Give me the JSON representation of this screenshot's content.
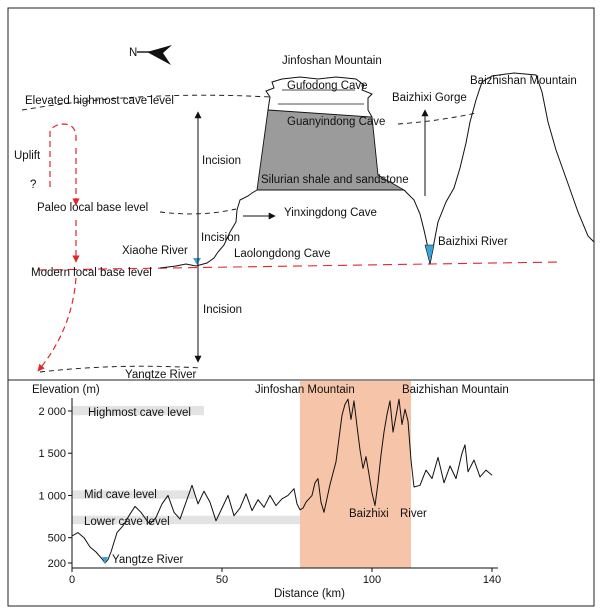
{
  "top_panel": {
    "north_label": "N",
    "jinfoshan_mountain": "Jinfoshan Mountain",
    "baizhishan_mountain": "Baizhishan Mountain",
    "gufodong_cave": "Gufodong Cave",
    "guanyindong_cave": "Guanyindong Cave",
    "baizhixi_gorge": "Baizhixi Gorge",
    "elevated_level": "Elevated highmost cave level",
    "uplift": "Uplift",
    "question_mark": "?",
    "incision_upper": "Incision",
    "incision_middle": "Incision",
    "incision_lower": "Incision",
    "silurian": "Silurian shale and sandstone",
    "paleo_level": "Paleo local base level",
    "yinxingdong_cave": "Yinxingdong Cave",
    "xiaohe_river": "Xiaohe River",
    "laolongdong_cave": "Laolongdong Cave",
    "baizhixi_river": "Baizhixi River",
    "modern_level": "Modern local base level",
    "yangtze_river": "Yangtze River"
  },
  "profile_chart": {
    "ylabel": "Elevation (m)",
    "xlabel": "Distance (km)",
    "highmost_band": "Highmost cave level",
    "mid_band": "Mid cave level",
    "lower_band": "Lower cave level",
    "jinfoshan_label": "Jinfoshan Mountain",
    "baizhishan_label": "Baizhishan Mountain",
    "baizhixi_label": "Baizhixi",
    "river_label": "River",
    "yangtze_label": "Yangtze River"
  },
  "chart_data": {
    "type": "line",
    "xlabel": "Distance (km)",
    "ylabel": "Elevation (m)",
    "xlim": [
      0,
      142
    ],
    "xticks": [
      "0",
      "50",
      "100",
      "140"
    ],
    "yticks": [
      "200",
      "500",
      "1 000",
      "1 500",
      "2 000"
    ],
    "y_tick_values": [
      200,
      500,
      1000,
      1500,
      2000
    ],
    "highlight_x_range": [
      76,
      113
    ],
    "bands": [
      {
        "name": "Highmost cave level",
        "x": [
          0,
          44
        ],
        "y": [
          1950,
          2060
        ]
      },
      {
        "name": "Mid cave level",
        "x": [
          0,
          41
        ],
        "y": [
          960,
          1060
        ]
      },
      {
        "name": "Lower cave level",
        "x": [
          0,
          76
        ],
        "y": [
          660,
          760
        ]
      }
    ],
    "series": [
      {
        "x": [
          0,
          2,
          4,
          6,
          8,
          10,
          11,
          12,
          13,
          15,
          17,
          19,
          21,
          23,
          25,
          26,
          28,
          30,
          32,
          34,
          36,
          38,
          40,
          42,
          44,
          46,
          48,
          50,
          52,
          54,
          56,
          58,
          60,
          62,
          64,
          66,
          68,
          70,
          72,
          74,
          75,
          76,
          77,
          78,
          79,
          80,
          81,
          82,
          83,
          84,
          86,
          88,
          90,
          91,
          92,
          93,
          94,
          95,
          96,
          97,
          98,
          99,
          100,
          101,
          102,
          103,
          104,
          105,
          106,
          107,
          108,
          109,
          110,
          111,
          112,
          113,
          114,
          116,
          118,
          120,
          122,
          124,
          126,
          128,
          130,
          131,
          132,
          134,
          136,
          138,
          140
        ],
        "y": [
          520,
          560,
          500,
          390,
          330,
          250,
          200,
          240,
          330,
          560,
          640,
          760,
          870,
          800,
          700,
          660,
          740,
          900,
          1000,
          800,
          720,
          920,
          1120,
          900,
          1050,
          920,
          700,
          850,
          1000,
          760,
          850,
          1020,
          820,
          950,
          860,
          1000,
          880,
          960,
          1000,
          1080,
          900,
          830,
          850,
          920,
          960,
          1000,
          1150,
          1200,
          920,
          800,
          1130,
          1400,
          1950,
          2080,
          2140,
          1900,
          2120,
          1820,
          1540,
          1320,
          1460,
          1250,
          1030,
          880,
          1150,
          1480,
          1750,
          1960,
          2120,
          1750,
          1940,
          2140,
          1840,
          2020,
          1880,
          1420,
          1100,
          1120,
          1300,
          1200,
          1450,
          1150,
          1350,
          1200,
          1500,
          1600,
          1280,
          1420,
          1220,
          1300,
          1240
        ]
      }
    ]
  }
}
